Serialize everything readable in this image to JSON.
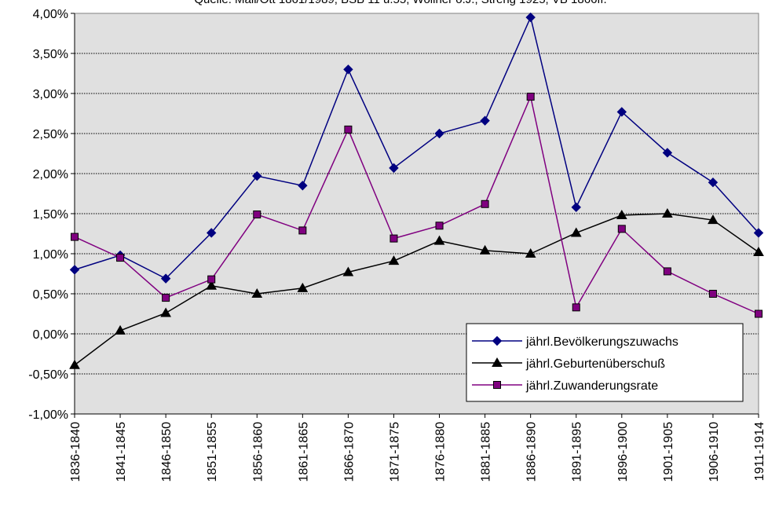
{
  "chart_data": {
    "type": "line",
    "source": "Quelle: Mail/Ott 1861/1989; BSB 11 u.55; Wollner o.J.; Streng 1925; VB 1866ff.",
    "categories": [
      "1836-1840",
      "1841-1845",
      "1846-1850",
      "1851-1855",
      "1856-1860",
      "1861-1865",
      "1866-1870",
      "1871-1875",
      "1876-1880",
      "1881-1885",
      "1886-1890",
      "1891-1895",
      "1896-1900",
      "1901-1905",
      "1906-1910",
      "1911-1914"
    ],
    "series": [
      {
        "name": "jährl.Bevölkerungszuwachs",
        "color": "#000080",
        "marker": "diamond",
        "values": [
          0.8,
          0.98,
          0.69,
          1.26,
          1.97,
          1.85,
          3.3,
          2.07,
          2.5,
          2.66,
          3.95,
          1.58,
          2.77,
          2.26,
          1.89,
          1.26
        ]
      },
      {
        "name": "jährl.Geburtenüberschuß",
        "color": "#000000",
        "marker": "triangle",
        "values": [
          -0.39,
          0.04,
          0.26,
          0.6,
          0.5,
          0.57,
          0.77,
          0.91,
          1.16,
          1.04,
          1.0,
          1.26,
          1.48,
          1.5,
          1.42,
          1.02
        ]
      },
      {
        "name": "jährl.Zuwanderungsrate",
        "color": "#800080",
        "marker": "square",
        "values": [
          1.21,
          0.95,
          0.45,
          0.68,
          1.49,
          1.29,
          2.55,
          1.19,
          1.35,
          1.62,
          2.96,
          0.33,
          1.31,
          0.78,
          0.5,
          0.25
        ]
      }
    ],
    "yticks": [
      "-1,00%",
      "-0,50%",
      "0,00%",
      "0,50%",
      "1,00%",
      "1,50%",
      "2,00%",
      "2,50%",
      "3,00%",
      "3,50%",
      "4,00%"
    ],
    "ylim": [
      -1.0,
      4.0
    ],
    "grid": true,
    "legend_position": "bottom-right",
    "plot_background": "#e0e0e0"
  }
}
